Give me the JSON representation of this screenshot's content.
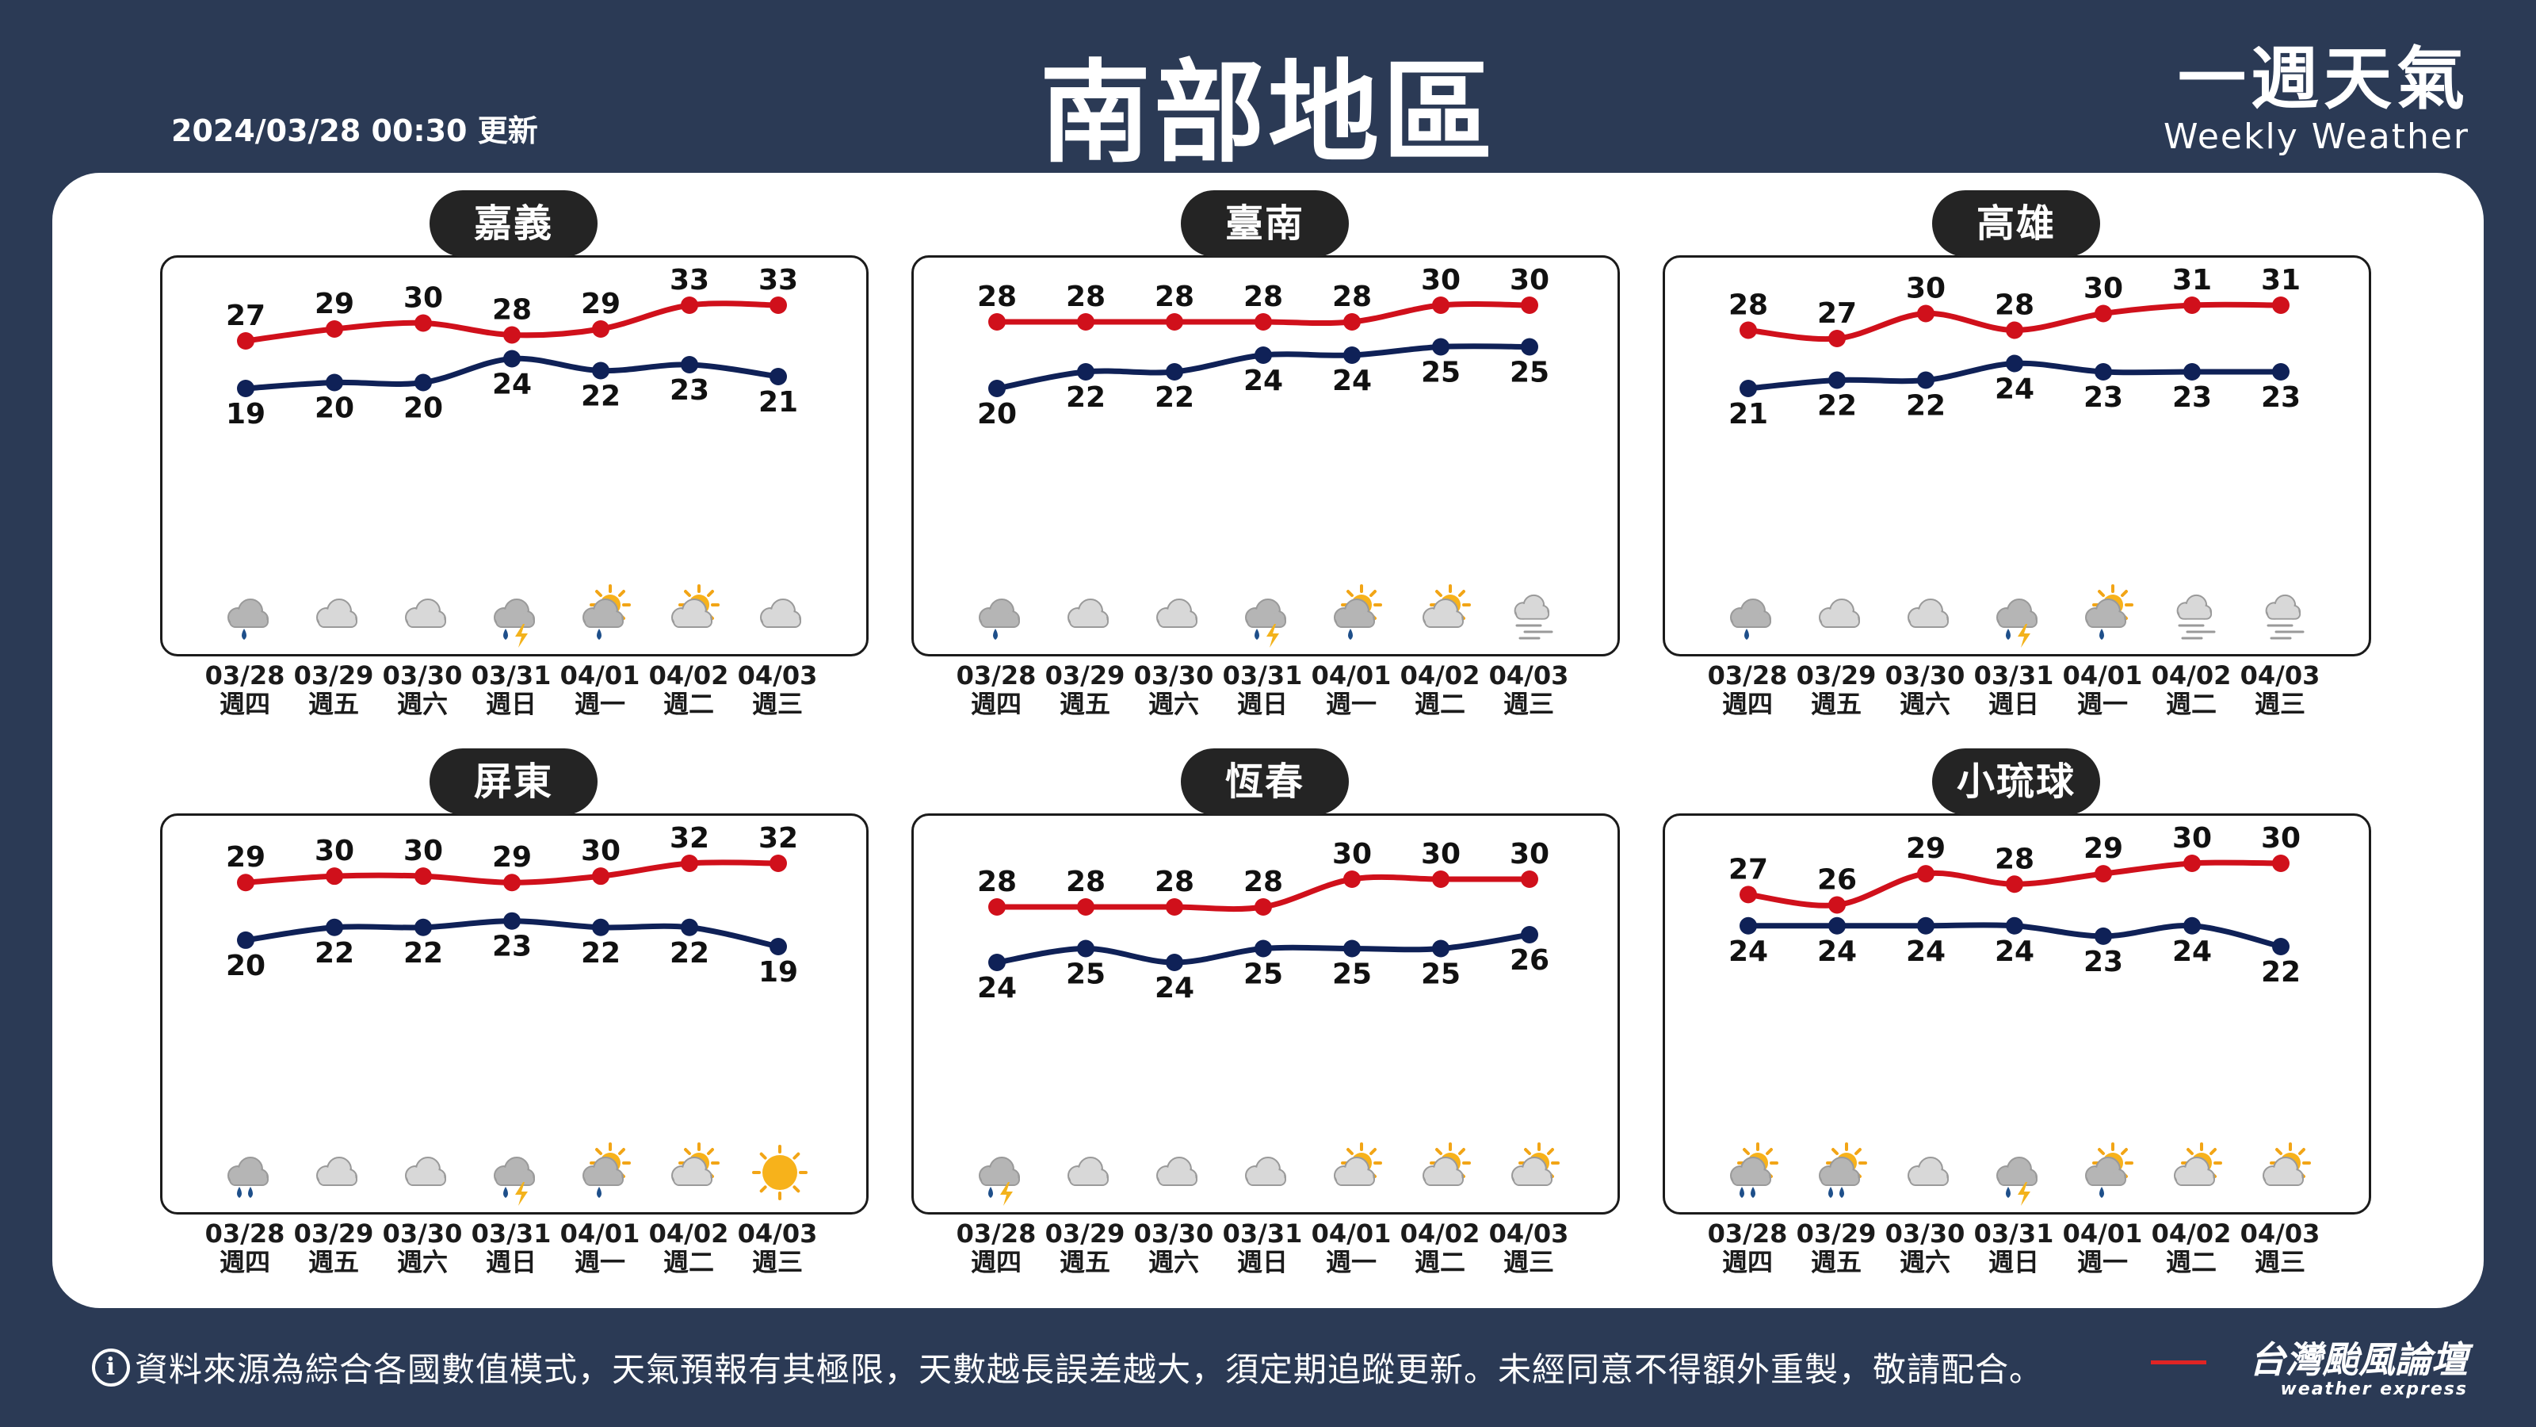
{
  "header": {
    "updated": "2024/03/28 00:30 更新",
    "title": "南部地區",
    "brand_main": "一週天氣",
    "brand_sub": "Weekly Weather"
  },
  "footer": {
    "info_icon": "i",
    "disclaimer": "資料來源為綜合各國數值模式，天氣預報有其極限，天數越長誤差越大，須定期追蹤更新。未經同意不得額外重製，敬請配合。",
    "brand_main": "台灣颱風論壇",
    "brand_sub": "weather express"
  },
  "colors": {
    "background": "#2b3a55",
    "max_line": "#d0101b",
    "min_line": "#0f2157"
  },
  "chart_data": [
    {
      "type": "line",
      "title": "嘉義",
      "x": [
        "03/28",
        "03/29",
        "03/30",
        "03/31",
        "04/01",
        "04/02",
        "04/03"
      ],
      "weekdays": [
        "週四",
        "週五",
        "週六",
        "週日",
        "週一",
        "週二",
        "週三"
      ],
      "series": [],
      "max": [
        27,
        29,
        30,
        28,
        29,
        33,
        33
      ],
      "min": [
        19,
        20,
        20,
        24,
        22,
        23,
        21
      ],
      "icons": [
        "rain",
        "cloudy",
        "cloudy",
        "thunder-rain",
        "partly-sunny-rain",
        "partly-sunny",
        "cloudy"
      ]
    },
    {
      "type": "line",
      "title": "臺南",
      "x": [
        "03/28",
        "03/29",
        "03/30",
        "03/31",
        "04/01",
        "04/02",
        "04/03"
      ],
      "weekdays": [
        "週四",
        "週五",
        "週六",
        "週日",
        "週一",
        "週二",
        "週三"
      ],
      "series": [],
      "max": [
        28,
        28,
        28,
        28,
        28,
        30,
        30
      ],
      "min": [
        20,
        22,
        22,
        24,
        24,
        25,
        25
      ],
      "icons": [
        "rain",
        "cloudy",
        "cloudy",
        "thunder-rain",
        "partly-sunny-rain",
        "partly-sunny",
        "fog"
      ]
    },
    {
      "type": "line",
      "title": "高雄",
      "x": [
        "03/28",
        "03/29",
        "03/30",
        "03/31",
        "04/01",
        "04/02",
        "04/03"
      ],
      "weekdays": [
        "週四",
        "週五",
        "週六",
        "週日",
        "週一",
        "週二",
        "週三"
      ],
      "series": [],
      "max": [
        28,
        27,
        30,
        28,
        30,
        31,
        31
      ],
      "min": [
        21,
        22,
        22,
        24,
        23,
        23,
        23
      ],
      "icons": [
        "rain",
        "cloudy",
        "cloudy",
        "thunder-rain",
        "partly-sunny-rain",
        "fog",
        "fog"
      ]
    },
    {
      "type": "line",
      "title": "屏東",
      "x": [
        "03/28",
        "03/29",
        "03/30",
        "03/31",
        "04/01",
        "04/02",
        "04/03"
      ],
      "weekdays": [
        "週四",
        "週五",
        "週六",
        "週日",
        "週一",
        "週二",
        "週三"
      ],
      "series": [],
      "max": [
        29,
        30,
        30,
        29,
        30,
        32,
        32
      ],
      "min": [
        20,
        22,
        22,
        23,
        22,
        22,
        19
      ],
      "icons": [
        "heavy-rain",
        "cloudy",
        "cloudy",
        "thunder-rain",
        "partly-sunny-rain",
        "partly-sunny",
        "sunny"
      ]
    },
    {
      "type": "line",
      "title": "恆春",
      "x": [
        "03/28",
        "03/29",
        "03/30",
        "03/31",
        "04/01",
        "04/02",
        "04/03"
      ],
      "weekdays": [
        "週四",
        "週五",
        "週六",
        "週日",
        "週一",
        "週二",
        "週三"
      ],
      "series": [],
      "max": [
        28,
        28,
        28,
        28,
        30,
        30,
        30
      ],
      "min": [
        24,
        25,
        24,
        25,
        25,
        25,
        26
      ],
      "icons": [
        "thunder-rain",
        "cloudy",
        "cloudy",
        "cloudy",
        "partly-sunny",
        "partly-sunny",
        "partly-sunny"
      ]
    },
    {
      "type": "line",
      "title": "小琉球",
      "x": [
        "03/28",
        "03/29",
        "03/30",
        "03/31",
        "04/01",
        "04/02",
        "04/03"
      ],
      "weekdays": [
        "週四",
        "週五",
        "週六",
        "週日",
        "週一",
        "週二",
        "週三"
      ],
      "series": [],
      "max": [
        27,
        26,
        29,
        28,
        29,
        30,
        30
      ],
      "min": [
        24,
        24,
        24,
        24,
        23,
        24,
        22
      ],
      "icons": [
        "partly-sunny-heavy-rain",
        "partly-sunny-heavy-rain",
        "cloudy",
        "thunder-rain",
        "partly-sunny-rain",
        "partly-sunny",
        "sunny-cloudy"
      ]
    }
  ]
}
